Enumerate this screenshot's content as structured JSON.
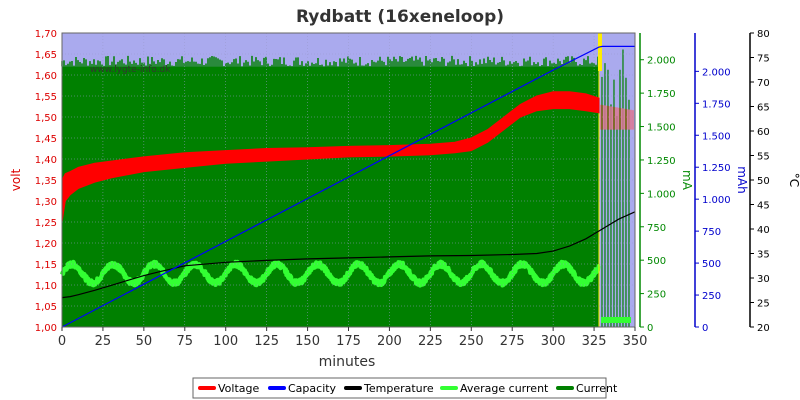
{
  "chart_data": {
    "type": "line",
    "title": "Rydbatt (16xeneloop)",
    "watermark": "www.lygte-info.dk",
    "xlabel": "minutes",
    "xlim": [
      0,
      350
    ],
    "xticks": [
      0,
      25,
      50,
      75,
      100,
      125,
      150,
      175,
      200,
      225,
      250,
      275,
      300,
      325,
      350
    ],
    "axes": {
      "volt": {
        "label": "volt",
        "color": "#dd0000",
        "min": 1.0,
        "max": 1.7,
        "ticks": [
          "1,00",
          "1,05",
          "1,10",
          "1,15",
          "1,20",
          "1,25",
          "1,30",
          "1,35",
          "1,40",
          "1,45",
          "1,50",
          "1,55",
          "1,60",
          "1,65",
          "1,70"
        ]
      },
      "ma": {
        "label": "mA",
        "color": "#008800",
        "min": 0,
        "max": 2200,
        "ticks": [
          "0",
          "250",
          "500",
          "750",
          "1.000",
          "1.250",
          "1.500",
          "1.750",
          "2.000"
        ]
      },
      "mah": {
        "label": "mAh",
        "color": "#0000cc",
        "min": 0,
        "max": 2300,
        "ticks": [
          "0",
          "250",
          "500",
          "750",
          "1.000",
          "1.250",
          "1.500",
          "1.750",
          "2.000"
        ]
      },
      "temp": {
        "label": "°C",
        "color": "#000000",
        "min": 20,
        "max": 80,
        "ticks": [
          "20",
          "25",
          "30",
          "35",
          "40",
          "45",
          "50",
          "55",
          "60",
          "65",
          "70",
          "75",
          "80"
        ]
      }
    },
    "series": [
      {
        "name": "Voltage",
        "color": "#ff0000",
        "axis": "volt",
        "x": [
          0,
          2,
          5,
          10,
          20,
          30,
          50,
          75,
          100,
          125,
          150,
          175,
          200,
          225,
          240,
          250,
          260,
          270,
          280,
          290,
          300,
          310,
          320,
          328
        ],
        "upper": [
          1.35,
          1.365,
          1.37,
          1.38,
          1.39,
          1.395,
          1.405,
          1.415,
          1.42,
          1.425,
          1.427,
          1.43,
          1.432,
          1.435,
          1.44,
          1.45,
          1.47,
          1.5,
          1.53,
          1.55,
          1.56,
          1.56,
          1.555,
          1.545
        ],
        "lower": [
          1.25,
          1.3,
          1.315,
          1.33,
          1.345,
          1.355,
          1.37,
          1.38,
          1.39,
          1.395,
          1.4,
          1.405,
          1.407,
          1.41,
          1.415,
          1.42,
          1.44,
          1.47,
          1.5,
          1.515,
          1.52,
          1.52,
          1.515,
          1.51
        ]
      },
      {
        "name": "Capacity",
        "color": "#0000ff",
        "axis": "mah",
        "x": [
          0,
          50,
          100,
          150,
          200,
          250,
          300,
          328,
          330,
          350
        ],
        "y": [
          0,
          335,
          670,
          1005,
          1340,
          1675,
          2010,
          2190,
          2195,
          2195
        ]
      },
      {
        "name": "Temperature",
        "color": "#000000",
        "axis": "temp",
        "x": [
          0,
          5,
          10,
          20,
          30,
          40,
          50,
          60,
          75,
          100,
          125,
          150,
          175,
          200,
          225,
          250,
          275,
          290,
          300,
          310,
          320,
          330,
          340,
          350
        ],
        "y": [
          26,
          26.2,
          26.6,
          27.5,
          28.5,
          29.5,
          30.5,
          31.3,
          32.5,
          33.2,
          33.6,
          33.9,
          34.1,
          34.3,
          34.5,
          34.6,
          34.8,
          35,
          35.5,
          36.5,
          38,
          40,
          42,
          43.5
        ]
      },
      {
        "name": "Average current",
        "color": "#33ff33",
        "axis": "ma",
        "base": 400,
        "amplitude": 70,
        "period": 25,
        "x_end": 328,
        "after": 50
      },
      {
        "name": "Current",
        "color": "#008000",
        "axis": "ma",
        "base": 1950,
        "spike_top": 2030,
        "x_end": 328
      }
    ],
    "legend": {
      "placement": "bottom",
      "items": [
        {
          "name": "Voltage",
          "color": "#ff0000"
        },
        {
          "name": "Capacity",
          "color": "#0000ff"
        },
        {
          "name": "Temperature",
          "color": "#000000"
        },
        {
          "name": "Average current",
          "color": "#33ff33"
        },
        {
          "name": "Current",
          "color": "#008000"
        }
      ]
    },
    "background_color": "#aaaaee",
    "marker_color": "#ffee00",
    "grid": true
  }
}
